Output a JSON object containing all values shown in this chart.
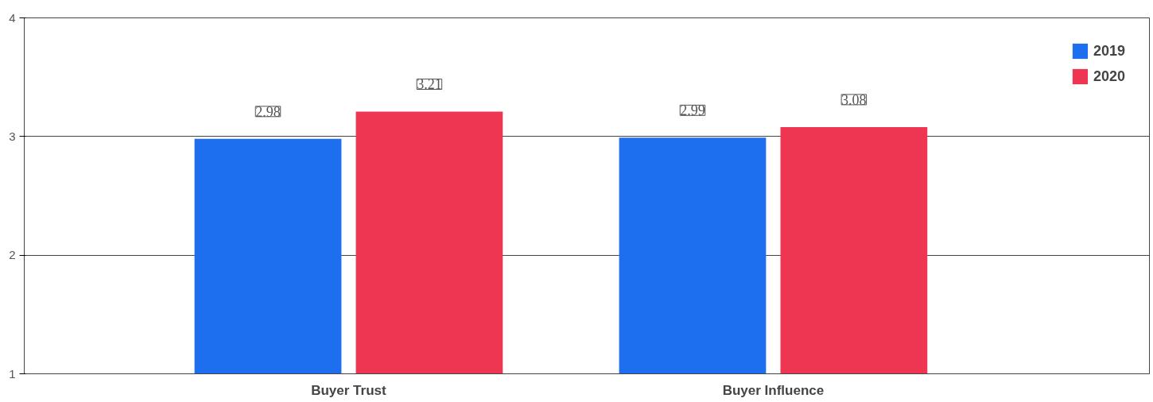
{
  "chart_data": {
    "type": "bar",
    "categories": [
      "Buyer Trust",
      "Buyer Influence"
    ],
    "series": [
      {
        "name": "2019",
        "color": "#1e6fef",
        "values": [
          2.98,
          2.99
        ]
      },
      {
        "name": "2020",
        "color": "#ee3652",
        "values": [
          3.21,
          3.08
        ]
      }
    ],
    "ylim": [
      1,
      4
    ],
    "yticks": [
      1,
      2,
      3,
      4
    ],
    "grid": "y",
    "legend": "top right",
    "data_labels": true
  }
}
